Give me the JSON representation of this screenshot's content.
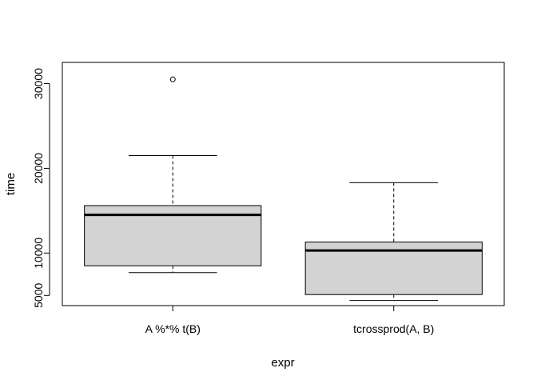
{
  "chart_data": {
    "type": "boxplot",
    "xlabel": "expr",
    "ylabel": "time",
    "ylim": [
      3800,
      32500
    ],
    "yticks": [
      5000,
      10000,
      20000,
      30000
    ],
    "categories": [
      "A %*% t(B)",
      "tcrossprod(A, B)"
    ],
    "boxes": [
      {
        "label": "A %*% t(B)",
        "min": 7700,
        "q1": 8500,
        "median": 14500,
        "q3": 15600,
        "max": 21500,
        "outliers": [
          30500
        ]
      },
      {
        "label": "tcrossprod(A, B)",
        "min": 4400,
        "q1": 5100,
        "median": 10300,
        "q3": 11300,
        "max": 18300,
        "outliers": []
      }
    ],
    "box_fill": "#d3d3d3",
    "grid": false,
    "legend": "none"
  }
}
